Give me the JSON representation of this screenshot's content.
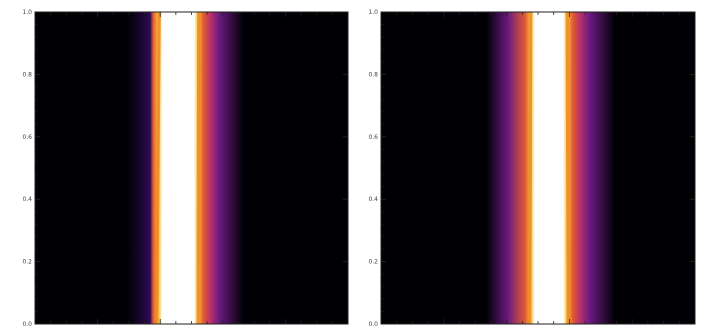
{
  "chart_data": [
    {
      "type": "heatmap",
      "title": "",
      "xlabel": "",
      "ylabel": "",
      "ylim": [
        0,
        1
      ],
      "grid": false,
      "legend": "none",
      "y_ticks": [
        "0.0",
        "0.2",
        "0.4",
        "0.6",
        "0.8",
        "1.0"
      ],
      "colormap": "inferno",
      "colors": [
        "#000004",
        "#2d0a55",
        "#6b1a80",
        "#b3306e",
        "#e35c2f",
        "#f59422",
        "#f7c843",
        "#fff6d8",
        "#ffffff"
      ],
      "band": {
        "center_top": 0.46,
        "center_bottom": 0.455,
        "core_halfwidth": 0.05,
        "glow_halfwidth_left": 0.09,
        "glow_halfwidth_right": 0.13,
        "purple_side": "right"
      }
    },
    {
      "type": "heatmap",
      "title": "",
      "xlabel": "",
      "ylabel": "",
      "ylim": [
        0,
        1
      ],
      "grid": false,
      "legend": "none",
      "y_ticks": [
        "0.0",
        "0.2",
        "0.4",
        "0.6",
        "0.8",
        "1.0"
      ],
      "colormap": "inferno",
      "colors": [
        "#000004",
        "#2d0a55",
        "#6b1a80",
        "#b3306e",
        "#e35c2f",
        "#f59422",
        "#f7c843",
        "#fff6d8",
        "#ffffff"
      ],
      "band": {
        "center_top": 0.535,
        "center_bottom": 0.535,
        "core_halfwidth": 0.045,
        "glow_halfwidth_left": 0.13,
        "glow_halfwidth_right": 0.13,
        "purple_side": "both"
      }
    }
  ]
}
